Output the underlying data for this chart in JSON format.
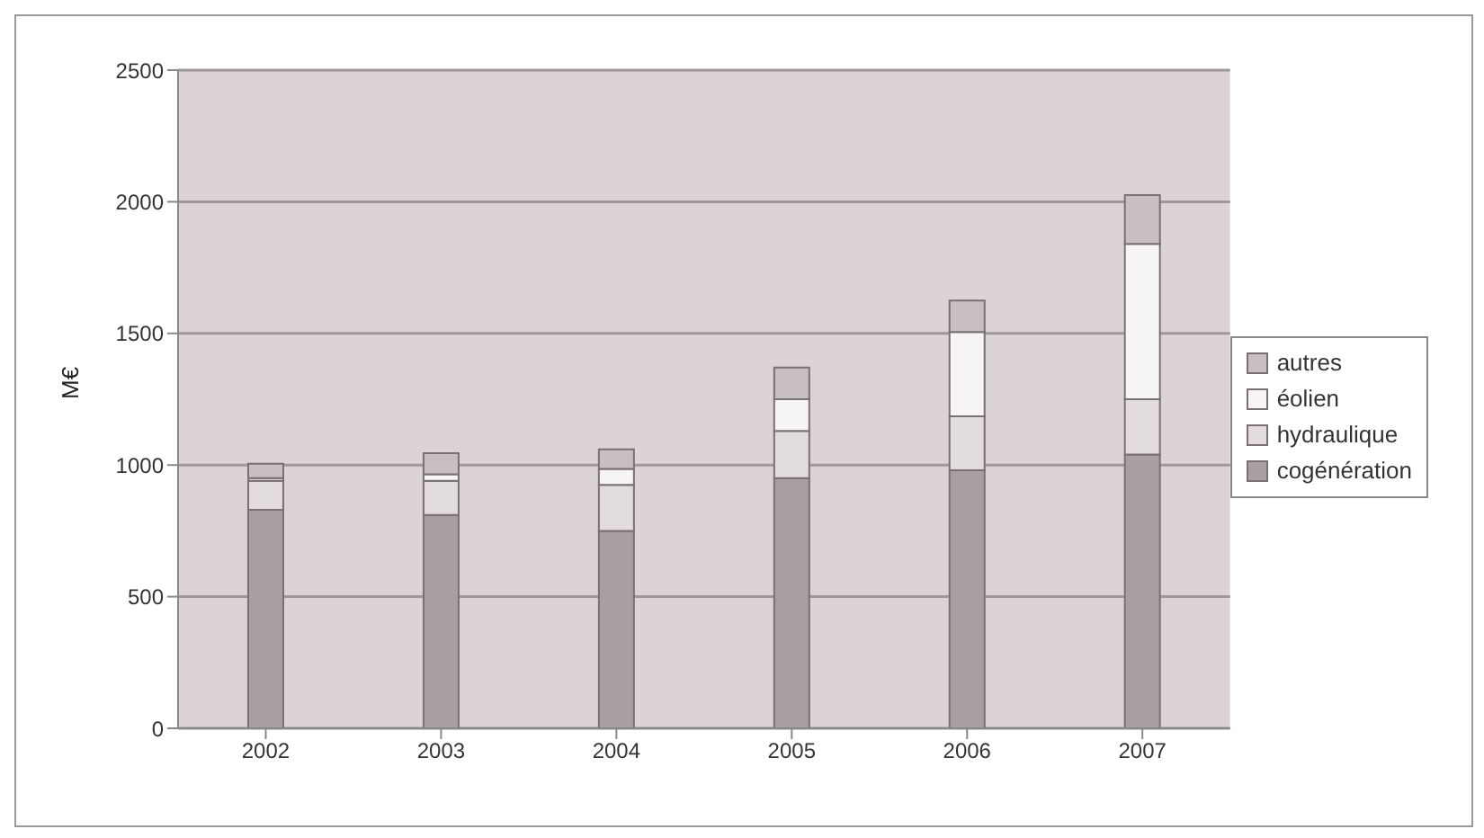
{
  "chart_data": {
    "type": "bar",
    "ylabel": "M€",
    "categories": [
      "2002",
      "2003",
      "2004",
      "2005",
      "2006",
      "2007"
    ],
    "series": [
      {
        "name": "cogénération",
        "color": "#a8a0a0",
        "values": [
          830,
          810,
          750,
          950,
          980,
          1040
        ]
      },
      {
        "name": "hydraulique",
        "color": "#e2dcdc",
        "values": [
          110,
          130,
          175,
          180,
          205,
          210
        ]
      },
      {
        "name": "éolien",
        "color": "#f6f4f4",
        "values": [
          10,
          25,
          60,
          120,
          320,
          590
        ]
      },
      {
        "name": "autres",
        "color": "#c8c0c0",
        "values": [
          55,
          80,
          75,
          120,
          120,
          185
        ]
      }
    ],
    "stacked": true,
    "ylim": [
      0,
      2500
    ],
    "yticks": [
      0,
      500,
      1000,
      1500,
      2000,
      2500
    ],
    "grid": "y",
    "legend": "right"
  }
}
